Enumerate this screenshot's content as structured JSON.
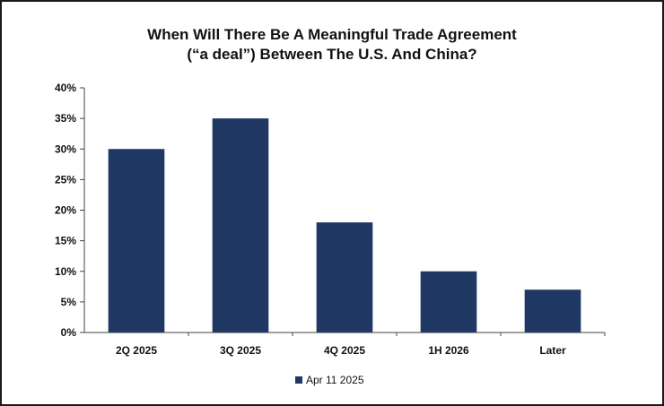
{
  "chart_data": {
    "type": "bar",
    "title_lines": [
      "When Will There Be A Meaningful Trade Agreement",
      "(“a deal”) Between The U.S. And China?"
    ],
    "categories": [
      "2Q 2025",
      "3Q 2025",
      "4Q 2025",
      "1H 2026",
      "Later"
    ],
    "series": [
      {
        "name": "Apr 11 2025",
        "values": [
          30,
          35,
          18,
          10,
          7
        ]
      }
    ],
    "y_ticks": [
      "0%",
      "5%",
      "10%",
      "15%",
      "20%",
      "25%",
      "30%",
      "35%",
      "40%"
    ],
    "ylim": [
      0,
      40
    ],
    "xlabel": "",
    "ylabel": "",
    "grid": false,
    "legend_position": "bottom-center",
    "bar_color": "#1f3864"
  }
}
